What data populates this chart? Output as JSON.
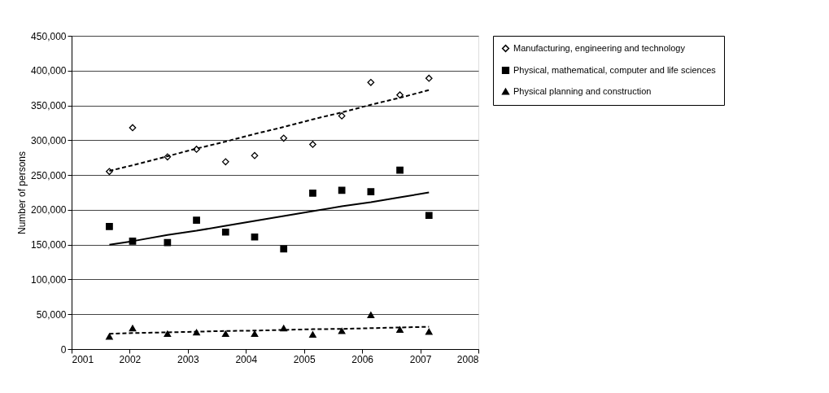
{
  "chart_data": {
    "type": "scatter",
    "ylabel": "Number of persons",
    "x": [
      2001.65,
      2002.05,
      2002.65,
      2003.15,
      2003.65,
      2004.15,
      2004.65,
      2005.15,
      2005.65,
      2006.15,
      2006.65,
      2007.15
    ],
    "series": [
      {
        "name": "Manufacturing, engineering and technology",
        "color": "#000000",
        "marker": "diamond",
        "values": [
          255000,
          318000,
          276000,
          287000,
          269000,
          278000,
          303000,
          294000,
          335000,
          383000,
          365000,
          389000
        ]
      },
      {
        "name": "Physical, mathematical, computer and life sciences",
        "color": "#000000",
        "marker": "square",
        "values": [
          176000,
          155000,
          153000,
          185000,
          168000,
          161000,
          144000,
          224000,
          228000,
          226000,
          257000,
          192000
        ]
      },
      {
        "name": "Physical planning and construction",
        "color": "#000000",
        "marker": "triangle",
        "values": [
          18000,
          30000,
          22000,
          24000,
          22000,
          22000,
          30000,
          21000,
          26000,
          49000,
          28000,
          25000
        ]
      },
      {
        "type": "line",
        "color": "#000000",
        "line_style": "dashed",
        "values": [
          256000,
          264000,
          277000,
          288000,
          298000,
          309000,
          319000,
          330000,
          340000,
          351000,
          361000,
          372000
        ]
      },
      {
        "type": "line",
        "color": "#000000",
        "line_style": "solid",
        "values": [
          150000,
          155000,
          164000,
          170000,
          177000,
          184000,
          191000,
          198000,
          205000,
          211000,
          218000,
          225000
        ]
      },
      {
        "type": "line",
        "color": "#000000",
        "line_style": "dashed",
        "values": [
          22000,
          23000,
          24000,
          25000,
          26000,
          26500,
          27500,
          28500,
          29000,
          30000,
          31000,
          32000
        ]
      }
    ],
    "xlim": [
      2001,
      2008
    ],
    "xticks": [
      2001,
      2002,
      2003,
      2004,
      2005,
      2006,
      2007,
      2008
    ],
    "ylim": [
      0,
      450000
    ],
    "yticks": [
      0,
      {
        "value": 50000,
        "label": "50,000"
      },
      {
        "value": 100000,
        "label": "100,000"
      },
      {
        "value": 150000,
        "label": "150,000"
      },
      {
        "value": 200000,
        "label": "200,000"
      },
      {
        "value": 250000,
        "label": "250,000"
      },
      {
        "value": 300000,
        "label": "300,000"
      },
      {
        "value": 350000,
        "label": "350,000"
      },
      {
        "value": 400000,
        "label": "400,000"
      },
      {
        "value": 450000,
        "label": "450,000"
      }
    ],
    "grid": "y",
    "legend": "right"
  }
}
